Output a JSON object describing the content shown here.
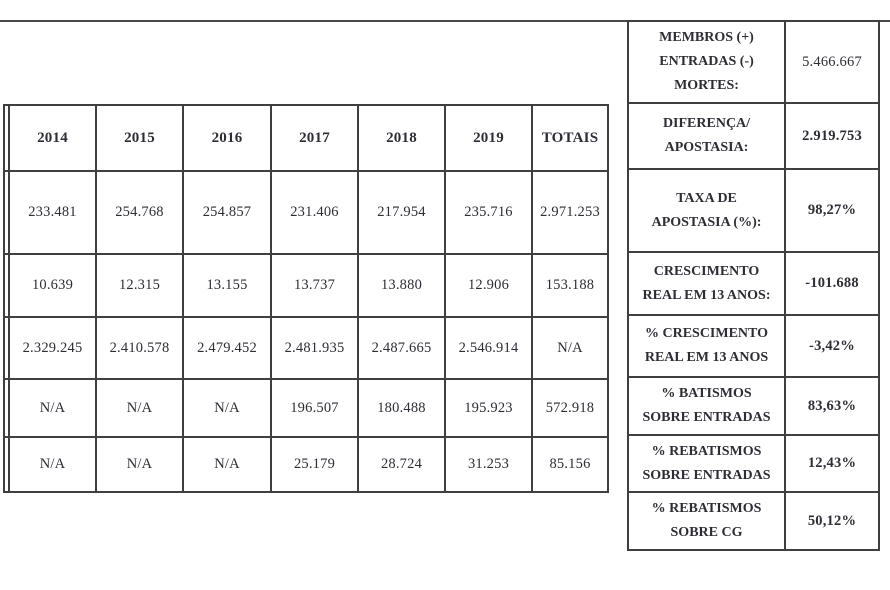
{
  "colors": {
    "border": "#3f3f3f",
    "text": "#2d2d35",
    "background": "#ffffff"
  },
  "table": {
    "years": [
      "2014",
      "2015",
      "2016",
      "2017",
      "2018",
      "2019"
    ],
    "totals_label": "TOTAIS",
    "rows": [
      {
        "cells": [
          "233.481",
          "254.768",
          "254.857",
          "231.406",
          "217.954",
          "235.716",
          "2.971.253"
        ]
      },
      {
        "cells": [
          "10.639",
          "12.315",
          "13.155",
          "13.737",
          "13.880",
          "12.906",
          "153.188"
        ]
      },
      {
        "cells": [
          "2.329.245",
          "2.410.578",
          "2.479.452",
          "2.481.935",
          "2.487.665",
          "2.546.914",
          "N/A"
        ]
      },
      {
        "cells": [
          "N/A",
          "N/A",
          "N/A",
          "196.507",
          "180.488",
          "195.923",
          "572.918"
        ]
      },
      {
        "cells": [
          "N/A",
          "N/A",
          "N/A",
          "25.179",
          "28.724",
          "31.253",
          "85.156"
        ]
      }
    ]
  },
  "summary": {
    "rows": [
      {
        "label_lines": [
          "MEMBROS (+)",
          "ENTRADAS (-)",
          "MORTES:"
        ],
        "value": "5.466.667",
        "bold_value": false
      },
      {
        "label_lines": [
          "DIFERENÇA/",
          "APOSTASIA:"
        ],
        "value": "2.919.753",
        "bold_value": true
      },
      {
        "label_lines": [
          "TAXA DE",
          "APOSTASIA (%):"
        ],
        "value": "98,27%",
        "bold_value": true
      },
      {
        "label_lines": [
          "CRESCIMENTO",
          "REAL EM 13 ANOS:"
        ],
        "value": "-101.688",
        "bold_value": true
      },
      {
        "label_lines": [
          "% CRESCIMENTO",
          "REAL EM 13 ANOS"
        ],
        "value": "-3,42%",
        "bold_value": true
      },
      {
        "label_lines": [
          "% BATISMOS",
          "SOBRE ENTRADAS"
        ],
        "value": "83,63%",
        "bold_value": true
      },
      {
        "label_lines": [
          "% REBATISMOS",
          "SOBRE ENTRADAS"
        ],
        "value": "12,43%",
        "bold_value": true
      },
      {
        "label_lines": [
          "% REBATISMOS",
          "SOBRE CG"
        ],
        "value": "50,12%",
        "bold_value": true
      }
    ]
  }
}
